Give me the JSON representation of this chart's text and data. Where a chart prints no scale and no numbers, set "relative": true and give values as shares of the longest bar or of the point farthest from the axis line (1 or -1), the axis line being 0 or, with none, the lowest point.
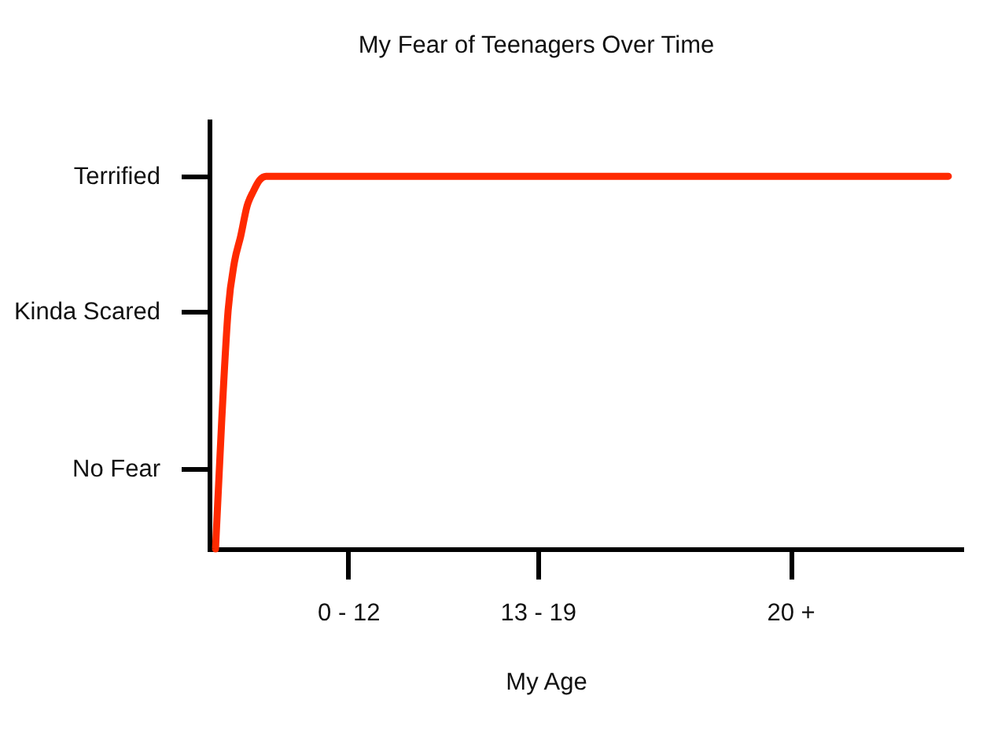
{
  "chart_data": {
    "type": "line",
    "relative": true,
    "title": "My Fear of Teenagers Over Time",
    "xlabel": "My Age",
    "categories": [
      null,
      null,
      null,
      null,
      null,
      null,
      null,
      null,
      null,
      null,
      null,
      null,
      null,
      null,
      null,
      null,
      null,
      null,
      null,
      null,
      null,
      null,
      "0 - 12",
      null,
      null,
      null,
      null,
      null,
      null,
      null,
      null,
      null,
      null,
      null,
      null,
      null,
      null,
      null,
      null,
      null,
      null,
      null,
      null,
      null,
      null,
      null,
      null,
      null,
      null,
      null,
      null,
      null,
      "13 - 19",
      null,
      null,
      null,
      null,
      null,
      null,
      null,
      null,
      null,
      null,
      null,
      null,
      null,
      null,
      null,
      null,
      null,
      null,
      null,
      null,
      null,
      null,
      null,
      null,
      null,
      null,
      null,
      null,
      null,
      null,
      null,
      null,
      null,
      null,
      null,
      null,
      null,
      null,
      null,
      "20 +",
      null,
      null,
      null,
      null,
      null,
      null,
      null,
      null,
      null,
      null,
      null,
      null,
      null,
      null,
      null,
      null,
      null,
      null,
      null,
      null,
      null,
      null,
      null,
      null,
      null,
      null,
      null
    ],
    "series": [
      {
        "color": "#ff2a00",
        "values": [
          null,
          0,
          0.35,
          0.64,
          0.77,
          0.84,
          0.92,
          0.96,
          0.99,
          1,
          1,
          1,
          1,
          1,
          1,
          1,
          1,
          1,
          1,
          1,
          1,
          1,
          1,
          1,
          1,
          1,
          1,
          1,
          1,
          1,
          1,
          1,
          1,
          1,
          1,
          1,
          1,
          1,
          1,
          1,
          1,
          1,
          1,
          1,
          1,
          1,
          1,
          1,
          1,
          1,
          1,
          1,
          1,
          1,
          1,
          1,
          1,
          1,
          1,
          1,
          1,
          1,
          1,
          1,
          1,
          1,
          1,
          1,
          1,
          1,
          1,
          1,
          1,
          1,
          1,
          1,
          1,
          1,
          1,
          1,
          1,
          1,
          1,
          1,
          1,
          1,
          1,
          1,
          1,
          1,
          1,
          1,
          1,
          1,
          1,
          1,
          1,
          1,
          1,
          1,
          1,
          1,
          1,
          1,
          1,
          1,
          1,
          1,
          1,
          1,
          1,
          1,
          1,
          1,
          1,
          1,
          1,
          1,
          null,
          null
        ]
      }
    ],
    "annotations": [
      "No Fear",
      "Kinda Scared",
      "Terrified"
    ]
  }
}
